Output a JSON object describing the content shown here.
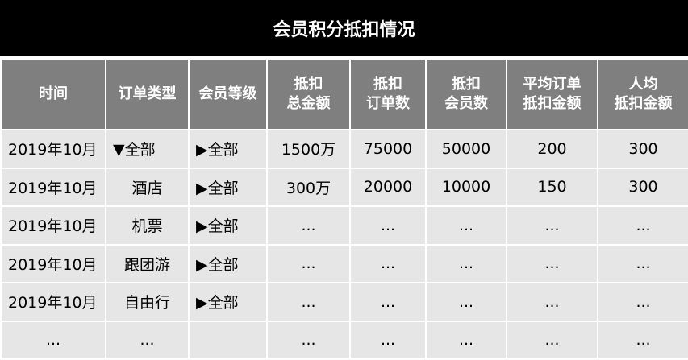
{
  "title": "会员积分抵扣情况",
  "headers": [
    "时间",
    "订单类型",
    "会员等级",
    "抵扣\n总金额",
    "抵扣\n订单数",
    "抵扣\n会员数",
    "平均订单\n抵扣金额",
    "人均\n抵扣金额"
  ],
  "rows": [
    [
      "2019年10月",
      "▼全部",
      "▶全部",
      "1500万",
      "75000",
      "50000",
      "200",
      "300"
    ],
    [
      "2019年10月",
      "酒店",
      "▶全部",
      "300万",
      "20000",
      "10000",
      "150",
      "300"
    ],
    [
      "2019年10月",
      "机票",
      "▶全部",
      "...",
      "...",
      "...",
      "...",
      "..."
    ],
    [
      "2019年10月",
      "跟团游",
      "▶全部",
      "...",
      "...",
      "...",
      "...",
      "..."
    ],
    [
      "2019年10月",
      "自由行",
      "▶全部",
      "...",
      "...",
      "...",
      "...",
      "..."
    ],
    [
      "...",
      "...",
      "",
      "...",
      "...",
      "...",
      "...",
      "..."
    ]
  ]
}
